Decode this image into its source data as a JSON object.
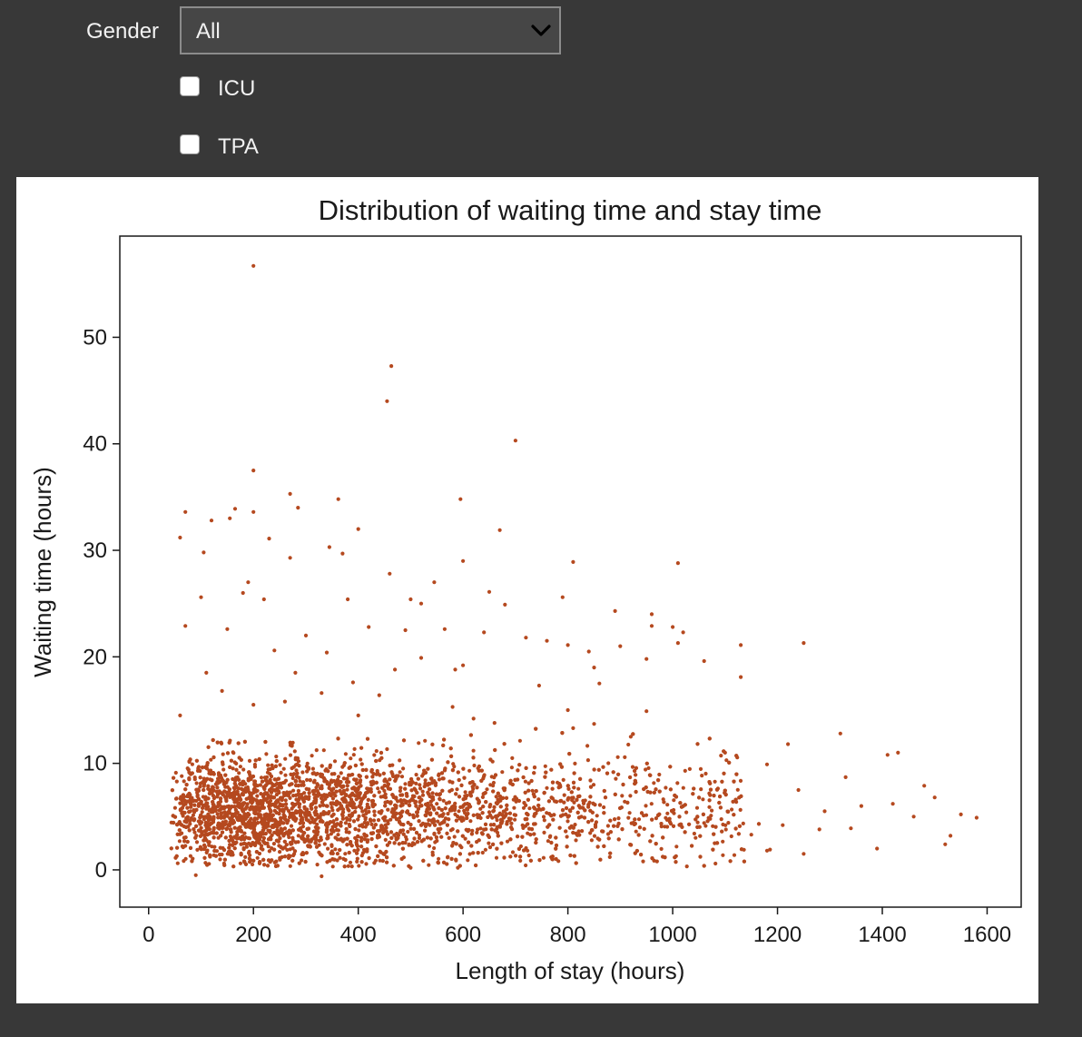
{
  "controls": {
    "gender_label": "Gender",
    "gender_selected": "All",
    "icu_label": "ICU",
    "tpa_label": "TPA"
  },
  "colors": {
    "background": "#383838",
    "point": "#b5491f"
  },
  "chart_data": {
    "type": "scatter",
    "title": "Distribution of waiting time and stay time",
    "xlabel": "Length of stay (hours)",
    "ylabel": "Waiting time (hours)",
    "xlim": [
      -55,
      1665
    ],
    "ylim": [
      -3.5,
      59.5
    ],
    "xticks": [
      0,
      200,
      400,
      600,
      800,
      1000,
      1200,
      1400,
      1600
    ],
    "yticks": [
      0,
      10,
      20,
      30,
      40,
      50
    ],
    "grid": false,
    "legend": "none",
    "series": [
      {
        "points": [
          [
            200,
            56.7
          ],
          [
            463,
            47.3
          ],
          [
            455,
            44.0
          ],
          [
            700,
            40.3
          ],
          [
            200,
            37.5
          ],
          [
            270,
            35.3
          ],
          [
            285,
            34.0
          ],
          [
            362,
            34.8
          ],
          [
            595,
            34.8
          ],
          [
            70,
            33.6
          ],
          [
            165,
            33.9
          ],
          [
            155,
            33.0
          ],
          [
            200,
            33.6
          ],
          [
            120,
            32.8
          ],
          [
            400,
            32.0
          ],
          [
            670,
            31.9
          ],
          [
            60,
            31.2
          ],
          [
            230,
            31.1
          ],
          [
            345,
            30.3
          ],
          [
            370,
            29.7
          ],
          [
            600,
            29.0
          ],
          [
            810,
            28.9
          ],
          [
            1010,
            28.8
          ],
          [
            270,
            29.3
          ],
          [
            105,
            29.8
          ],
          [
            460,
            27.8
          ],
          [
            545,
            27.0
          ],
          [
            190,
            27.0
          ],
          [
            180,
            26.0
          ],
          [
            650,
            26.1
          ],
          [
            100,
            25.6
          ],
          [
            220,
            25.4
          ],
          [
            380,
            25.4
          ],
          [
            500,
            25.4
          ],
          [
            520,
            25.0
          ],
          [
            680,
            24.9
          ],
          [
            790,
            25.6
          ],
          [
            890,
            24.3
          ],
          [
            960,
            24.0
          ],
          [
            70,
            22.9
          ],
          [
            150,
            22.6
          ],
          [
            300,
            22.0
          ],
          [
            420,
            22.8
          ],
          [
            490,
            22.5
          ],
          [
            565,
            22.6
          ],
          [
            640,
            22.3
          ],
          [
            720,
            21.8
          ],
          [
            760,
            21.5
          ],
          [
            800,
            21.1
          ],
          [
            840,
            20.5
          ],
          [
            900,
            21.0
          ],
          [
            960,
            22.9
          ],
          [
            1000,
            22.8
          ],
          [
            1020,
            22.3
          ],
          [
            1010,
            21.3
          ],
          [
            1130,
            21.1
          ],
          [
            1250,
            21.3
          ],
          [
            240,
            20.6
          ],
          [
            340,
            20.4
          ],
          [
            520,
            19.9
          ],
          [
            600,
            19.2
          ],
          [
            850,
            19.0
          ],
          [
            950,
            19.8
          ],
          [
            1060,
            19.6
          ],
          [
            1130,
            18.1
          ],
          [
            110,
            18.5
          ],
          [
            280,
            18.5
          ],
          [
            390,
            17.6
          ],
          [
            470,
            18.8
          ],
          [
            585,
            18.8
          ],
          [
            745,
            17.3
          ],
          [
            860,
            17.5
          ],
          [
            140,
            16.8
          ],
          [
            330,
            16.6
          ],
          [
            440,
            16.4
          ],
          [
            200,
            15.5
          ],
          [
            260,
            15.8
          ],
          [
            580,
            15.3
          ],
          [
            800,
            15.0
          ],
          [
            950,
            14.9
          ],
          [
            60,
            14.5
          ],
          [
            400,
            14.5
          ],
          [
            620,
            14.2
          ],
          [
            660,
            13.8
          ],
          [
            810,
            13.3
          ],
          [
            850,
            13.7
          ],
          [
            920,
            12.5
          ],
          [
            1320,
            12.8
          ],
          [
            1430,
            11.0
          ],
          [
            1410,
            10.8
          ],
          [
            1220,
            11.8
          ],
          [
            1100,
            11.0
          ],
          [
            1180,
            9.9
          ],
          [
            1480,
            7.9
          ],
          [
            1500,
            6.8
          ],
          [
            1330,
            8.7
          ],
          [
            1550,
            5.2
          ],
          [
            1580,
            4.9
          ],
          [
            1530,
            3.2
          ],
          [
            1520,
            2.4
          ],
          [
            1390,
            2.0
          ],
          [
            1250,
            1.5
          ],
          [
            1180,
            1.8
          ],
          [
            1080,
            2.5
          ],
          [
            970,
            0.8
          ],
          [
            880,
            1.2
          ],
          [
            770,
            1.0
          ],
          [
            590,
            0.2
          ],
          [
            500,
            0.2
          ],
          [
            330,
            -0.6
          ],
          [
            90,
            -0.5
          ],
          [
            80,
            1.3
          ],
          [
            1420,
            6.2
          ],
          [
            1460,
            5.0
          ],
          [
            1360,
            6.0
          ],
          [
            1290,
            5.5
          ],
          [
            1210,
            4.2
          ],
          [
            1150,
            3.3
          ],
          [
            1060,
            4.4
          ],
          [
            990,
            5.3
          ],
          [
            930,
            3.6
          ],
          [
            1115,
            6.4
          ],
          [
            1240,
            7.5
          ],
          [
            1280,
            3.8
          ],
          [
            1340,
            3.9
          ]
        ]
      }
    ]
  }
}
